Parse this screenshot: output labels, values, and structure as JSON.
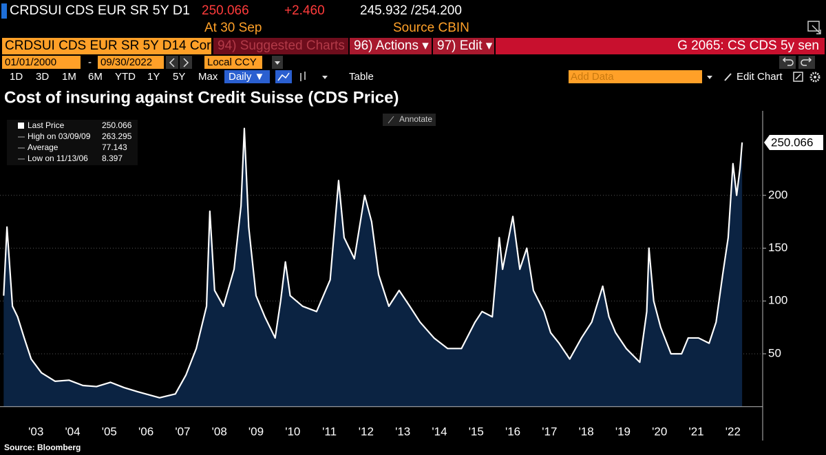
{
  "terminal": {
    "security": "CRDSUI CDS EUR SR 5Y D1",
    "last": "250.066",
    "change": "+2.460",
    "bid_ask": "245.932 /254.200",
    "date": "At 30 Sep",
    "source": "Source CBIN",
    "security_box": "CRDSUI CDS EUR SR 5Y D14 Cor",
    "menu": [
      "94) Suggested Charts",
      "96) Actions ▾",
      "97) Edit ▾"
    ],
    "chart_name": "G 2065: CS CDS 5y sen",
    "start_date": "01/01/2000",
    "date_sep": "-",
    "end_date": "09/30/2022",
    "currency": "Local CCY",
    "periods": [
      "1D",
      "3D",
      "1M",
      "6M",
      "YTD",
      "1Y",
      "5Y",
      "Max"
    ],
    "frequency": "Daily ▼",
    "table": "Table",
    "add_data": "Add Data",
    "edit_chart": "Edit Chart",
    "annotate": "Annotate"
  },
  "chart_data": {
    "type": "area",
    "title": "Cost of insuring against Credit Suisse (CDS Price)",
    "source": "Source: Bloomberg",
    "x": [
      2002.62,
      2002.71,
      2002.86,
      2003.0,
      2003.18,
      2003.37,
      2003.65,
      2004.02,
      2004.4,
      2004.78,
      2005.15,
      2005.53,
      2005.9,
      2006.28,
      2006.87,
      2007.3,
      2007.59,
      2007.87,
      2008.15,
      2008.24,
      2008.37,
      2008.61,
      2008.9,
      2009.09,
      2009.18,
      2009.3,
      2009.5,
      2009.74,
      2010.02,
      2010.17,
      2010.3,
      2010.43,
      2010.77,
      2011.15,
      2011.52,
      2011.75,
      2011.9,
      2012.18,
      2012.46,
      2012.65,
      2012.84,
      2013.12,
      2013.4,
      2013.69,
      2013.97,
      2014.35,
      2014.72,
      2015.1,
      2015.47,
      2015.66,
      2015.94,
      2016.13,
      2016.22,
      2016.5,
      2016.69,
      2016.88,
      2017.06,
      2017.35,
      2017.53,
      2017.76,
      2018.05,
      2018.37,
      2018.65,
      2018.95,
      2019.12,
      2019.3,
      2019.59,
      2019.96,
      2020.15,
      2020.21,
      2020.34,
      2020.53,
      2020.81,
      2021.1,
      2021.28,
      2021.56,
      2021.85,
      2022.04,
      2022.22,
      2022.37,
      2022.5,
      2022.6,
      2022.69,
      2022.75
    ],
    "series": [
      {
        "name": "Last Price",
        "color": "#ffffff",
        "fill": "#0b2342",
        "values": [
          105,
          170,
          95,
          85,
          65,
          45,
          32,
          24,
          25,
          20,
          19,
          23,
          18,
          14,
          8.397,
          12,
          30,
          55,
          95,
          185,
          110,
          95,
          130,
          190,
          263.295,
          170,
          105,
          85,
          65,
          100,
          137,
          105,
          95,
          90,
          120,
          214,
          160,
          140,
          200,
          175,
          125,
          95,
          110,
          95,
          80,
          65,
          55,
          55,
          80,
          90,
          85,
          160,
          130,
          180,
          130,
          150,
          110,
          90,
          70,
          60,
          45,
          65,
          80,
          114,
          85,
          70,
          55,
          42,
          90,
          150,
          100,
          75,
          50,
          50,
          65,
          65,
          60,
          80,
          125,
          160,
          230,
          200,
          225,
          250.066
        ]
      }
    ],
    "stats": [
      {
        "label": "High on 03/09/09",
        "value": 263.295
      },
      {
        "label": "Average",
        "value": 77.143
      },
      {
        "label": "Low on 11/13/06",
        "value": 8.397
      }
    ],
    "xlim": [
      2002.52,
      2023.31
    ],
    "xticks": [
      {
        "value": 2003.5,
        "label": "'03"
      },
      {
        "value": 2004.5,
        "label": "'04"
      },
      {
        "value": 2005.5,
        "label": "'05"
      },
      {
        "value": 2006.5,
        "label": "'06"
      },
      {
        "value": 2007.5,
        "label": "'07"
      },
      {
        "value": 2008.5,
        "label": "'08"
      },
      {
        "value": 2009.5,
        "label": "'09"
      },
      {
        "value": 2010.5,
        "label": "'10"
      },
      {
        "value": 2011.5,
        "label": "'11"
      },
      {
        "value": 2012.5,
        "label": "'12"
      },
      {
        "value": 2013.5,
        "label": "'13"
      },
      {
        "value": 2014.5,
        "label": "'14"
      },
      {
        "value": 2015.5,
        "label": "'15"
      },
      {
        "value": 2016.5,
        "label": "'16"
      },
      {
        "value": 2017.5,
        "label": "'17"
      },
      {
        "value": 2018.5,
        "label": "'18"
      },
      {
        "value": 2019.5,
        "label": "'19"
      },
      {
        "value": 2020.5,
        "label": "'20"
      },
      {
        "value": 2021.5,
        "label": "'21"
      },
      {
        "value": 2022.5,
        "label": "'22"
      }
    ],
    "ylim": [
      0,
      280
    ],
    "yticks": [
      50,
      100,
      150,
      200
    ],
    "grid": true
  }
}
